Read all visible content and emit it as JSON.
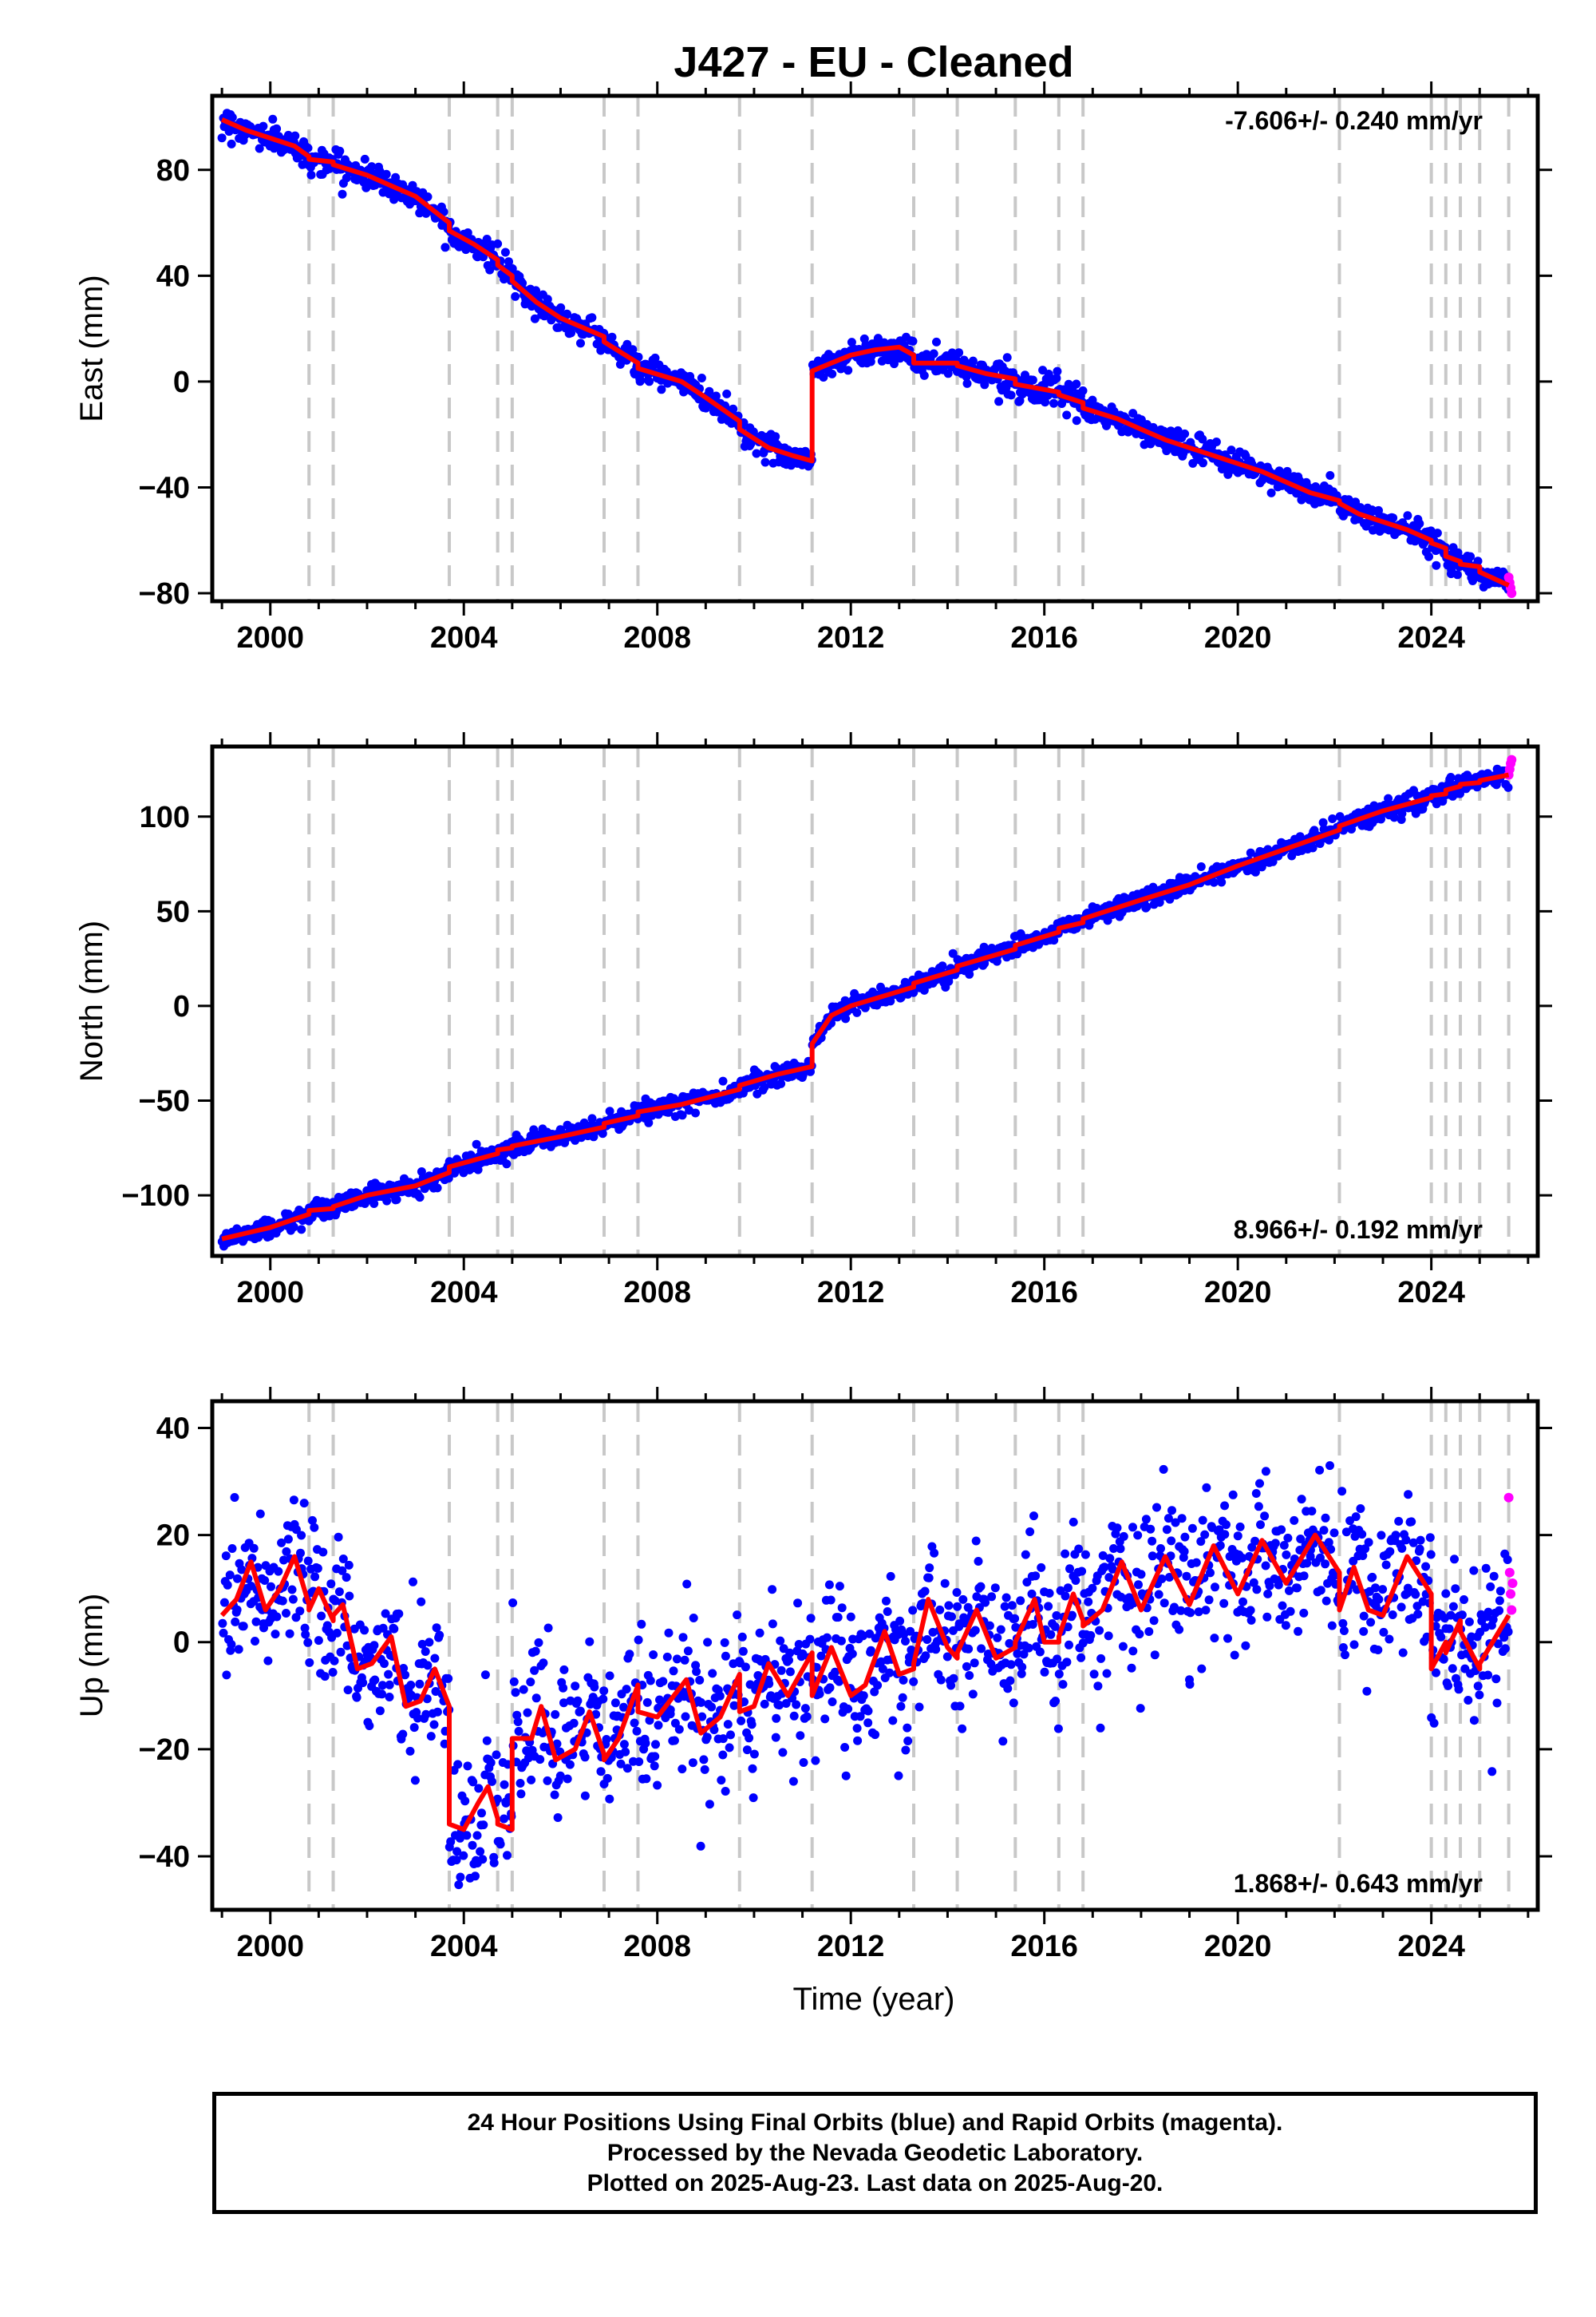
{
  "figure": {
    "title": "J427  - EU - Cleaned",
    "xlabel": "Time (year)",
    "footer": [
      "24 Hour Positions Using Final Orbits (blue) and Rapid Orbits (magenta).",
      "Processed by the Nevada Geodetic Laboratory.",
      "Plotted on 2025-Aug-23. Last data on 2025-Aug-20."
    ]
  },
  "colors": {
    "final_orbits": "#0000ff",
    "rapid_orbits": "#ff00ff",
    "model_fit": "#ff0000",
    "event_lines": "#c8c8c8",
    "axes": "#000000"
  },
  "chart_data": [
    {
      "type": "scatter",
      "name": "east",
      "title": "J427  - EU - Cleaned",
      "ylabel": "East (mm)",
      "xlabel": "",
      "rate_label": "-7.606+/- 0.240 mm/yr",
      "rate_label_position": "top-right",
      "xlim": [
        1998.8,
        2026.2
      ],
      "ylim": [
        -83,
        108
      ],
      "xticks": [
        2000,
        2004,
        2008,
        2012,
        2016,
        2020,
        2024
      ],
      "yticks": [
        -80,
        -40,
        0,
        40,
        80
      ],
      "event_lines": [
        2000.8,
        2001.3,
        2003.7,
        2004.7,
        2005.0,
        2006.9,
        2007.6,
        2009.7,
        2011.2,
        2013.3,
        2014.2,
        2015.4,
        2016.3,
        2016.8,
        2022.1,
        2024.0,
        2024.3,
        2024.6,
        2025.0,
        2025.6
      ],
      "fit_segments": [
        {
          "x": [
            1999.0,
            1999.5,
            2000.0,
            2000.5,
            2000.8
          ],
          "y": [
            99,
            95,
            92,
            89,
            85
          ]
        },
        {
          "x": [
            2000.8,
            2001.3
          ],
          "y": [
            84,
            83
          ]
        },
        {
          "x": [
            2001.3,
            2002.0,
            2002.5,
            2003.0,
            2003.7
          ],
          "y": [
            82,
            78,
            74,
            70,
            60
          ]
        },
        {
          "x": [
            2003.7,
            2004.2,
            2004.7
          ],
          "y": [
            57,
            52,
            46
          ]
        },
        {
          "x": [
            2004.7,
            2005.0
          ],
          "y": [
            44,
            40
          ]
        },
        {
          "x": [
            2005.0,
            2005.5,
            2006.0,
            2006.9
          ],
          "y": [
            38,
            30,
            24,
            17
          ]
        },
        {
          "x": [
            2006.9,
            2007.6
          ],
          "y": [
            15,
            7
          ]
        },
        {
          "x": [
            2007.6,
            2008.5,
            2009.0,
            2009.7
          ],
          "y": [
            5,
            0,
            -6,
            -15
          ]
        },
        {
          "x": [
            2009.7,
            2010.3,
            2010.8,
            2011.2
          ],
          "y": [
            -18,
            -25,
            -28,
            -30
          ]
        },
        {
          "x": [
            2011.2,
            2011.6,
            2012.0,
            2012.5,
            2013.0,
            2013.3
          ],
          "y": [
            4,
            7,
            10,
            12,
            13,
            10
          ]
        },
        {
          "x": [
            2013.3,
            2014.2
          ],
          "y": [
            7,
            7
          ]
        },
        {
          "x": [
            2014.2,
            2014.8,
            2015.4
          ],
          "y": [
            6,
            3,
            1
          ]
        },
        {
          "x": [
            2015.4,
            2016.3
          ],
          "y": [
            -1,
            -4
          ]
        },
        {
          "x": [
            2016.3,
            2016.8
          ],
          "y": [
            -5,
            -8
          ]
        },
        {
          "x": [
            2016.8,
            2017.5,
            2018.0,
            2018.5,
            2019.0,
            2019.5,
            2020.0,
            2020.5,
            2021.0,
            2021.5,
            2022.1
          ],
          "y": [
            -10,
            -14,
            -18,
            -22,
            -25,
            -28,
            -31,
            -34,
            -38,
            -42,
            -45
          ]
        },
        {
          "x": [
            2022.1,
            2022.5,
            2023.0,
            2023.5,
            2024.0
          ],
          "y": [
            -46,
            -50,
            -53,
            -56,
            -60
          ]
        },
        {
          "x": [
            2024.0,
            2024.3
          ],
          "y": [
            -61,
            -63
          ]
        },
        {
          "x": [
            2024.3,
            2024.6
          ],
          "y": [
            -66,
            -68
          ]
        },
        {
          "x": [
            2024.6,
            2025.0
          ],
          "y": [
            -69,
            -70
          ]
        },
        {
          "x": [
            2025.0,
            2025.6
          ],
          "y": [
            -72,
            -77
          ]
        }
      ],
      "rapid_points": {
        "x": [
          2025.6,
          2025.62,
          2025.64,
          2025.66
        ],
        "y": [
          -74,
          -76,
          -78,
          -80
        ]
      },
      "noise_sd": 2.5
    },
    {
      "type": "scatter",
      "name": "north",
      "ylabel": "North (mm)",
      "xlabel": "",
      "rate_label": "8.966+/- 0.192 mm/yr",
      "rate_label_position": "bottom-right",
      "xlim": [
        1998.8,
        2026.2
      ],
      "ylim": [
        -132,
        137
      ],
      "xticks": [
        2000,
        2004,
        2008,
        2012,
        2016,
        2020,
        2024
      ],
      "yticks": [
        -100,
        -50,
        0,
        50,
        100
      ],
      "event_lines": [
        2000.8,
        2001.3,
        2003.7,
        2004.7,
        2005.0,
        2006.9,
        2007.6,
        2009.7,
        2011.2,
        2013.3,
        2014.2,
        2015.4,
        2016.3,
        2016.8,
        2022.1,
        2024.0,
        2024.3,
        2024.6,
        2025.0,
        2025.6
      ],
      "fit_segments": [
        {
          "x": [
            1999.0,
            1999.5,
            2000.0,
            2000.8
          ],
          "y": [
            -123,
            -120,
            -117,
            -110
          ]
        },
        {
          "x": [
            2000.8,
            2001.3
          ],
          "y": [
            -108,
            -107
          ]
        },
        {
          "x": [
            2001.3,
            2002.0,
            2003.0,
            2003.7
          ],
          "y": [
            -106,
            -100,
            -95,
            -88
          ]
        },
        {
          "x": [
            2003.7,
            2004.7
          ],
          "y": [
            -85,
            -78
          ]
        },
        {
          "x": [
            2004.7,
            2005.0
          ],
          "y": [
            -76,
            -75
          ]
        },
        {
          "x": [
            2005.0,
            2006.0,
            2006.9
          ],
          "y": [
            -74,
            -69,
            -64
          ]
        },
        {
          "x": [
            2006.9,
            2007.6
          ],
          "y": [
            -62,
            -58
          ]
        },
        {
          "x": [
            2007.6,
            2008.5,
            2009.7
          ],
          "y": [
            -56,
            -52,
            -44
          ]
        },
        {
          "x": [
            2009.7,
            2010.5,
            2011.2
          ],
          "y": [
            -42,
            -36,
            -32
          ]
        },
        {
          "x": [
            2011.2,
            2011.6,
            2012.0,
            2013.3
          ],
          "y": [
            -20,
            -5,
            0,
            10
          ]
        },
        {
          "x": [
            2013.3,
            2014.2
          ],
          "y": [
            12,
            19
          ]
        },
        {
          "x": [
            2014.2,
            2015.4
          ],
          "y": [
            21,
            30
          ]
        },
        {
          "x": [
            2015.4,
            2016.3
          ],
          "y": [
            32,
            39
          ]
        },
        {
          "x": [
            2016.3,
            2016.8
          ],
          "y": [
            41,
            44
          ]
        },
        {
          "x": [
            2016.8,
            2018.0,
            2019.0,
            2020.0,
            2021.0,
            2022.1
          ],
          "y": [
            46,
            56,
            64,
            74,
            83,
            93
          ]
        },
        {
          "x": [
            2022.1,
            2023.0,
            2024.0
          ],
          "y": [
            95,
            103,
            110
          ]
        },
        {
          "x": [
            2024.0,
            2024.3
          ],
          "y": [
            111,
            112
          ]
        },
        {
          "x": [
            2024.3,
            2024.6
          ],
          "y": [
            114,
            116
          ]
        },
        {
          "x": [
            2024.6,
            2025.0
          ],
          "y": [
            117,
            118
          ]
        },
        {
          "x": [
            2025.0,
            2025.6
          ],
          "y": [
            119,
            122
          ]
        }
      ],
      "rapid_points": {
        "x": [
          2025.6,
          2025.62,
          2025.64,
          2025.66
        ],
        "y": [
          122,
          125,
          128,
          130
        ]
      },
      "noise_sd": 2.5
    },
    {
      "type": "scatter",
      "name": "up",
      "ylabel": "Up (mm)",
      "xlabel": "Time (year)",
      "rate_label": "1.868+/- 0.643 mm/yr",
      "rate_label_position": "bottom-right",
      "xlim": [
        1998.8,
        2026.2
      ],
      "ylim": [
        -50,
        45
      ],
      "xticks": [
        2000,
        2004,
        2008,
        2012,
        2016,
        2020,
        2024
      ],
      "yticks": [
        -40,
        -20,
        0,
        20,
        40
      ],
      "event_lines": [
        2000.8,
        2001.3,
        2003.7,
        2004.7,
        2005.0,
        2006.9,
        2007.6,
        2009.7,
        2011.2,
        2013.3,
        2014.2,
        2015.4,
        2016.3,
        2016.8,
        2022.1,
        2024.0,
        2024.3,
        2024.6,
        2025.0,
        2025.6
      ],
      "fit_segments": [
        {
          "x": [
            1999.0,
            1999.3,
            1999.6,
            1999.9,
            2000.2,
            2000.5,
            2000.8
          ],
          "y": [
            5,
            8,
            15,
            6,
            10,
            16,
            7
          ]
        },
        {
          "x": [
            2000.8,
            2001.0,
            2001.3
          ],
          "y": [
            6,
            10,
            4
          ]
        },
        {
          "x": [
            2001.3,
            2001.5,
            2001.8,
            2002.1,
            2002.5,
            2002.8,
            2003.1,
            2003.4,
            2003.7
          ],
          "y": [
            5,
            7,
            -5,
            -4,
            1,
            -12,
            -11,
            -5,
            -12
          ]
        },
        {
          "x": [
            2003.7,
            2004.0,
            2004.3,
            2004.5,
            2004.7
          ],
          "y": [
            -34,
            -35,
            -30,
            -27,
            -33
          ]
        },
        {
          "x": [
            2004.7,
            2005.0
          ],
          "y": [
            -34,
            -35
          ]
        },
        {
          "x": [
            2005.0,
            2005.4,
            2005.6,
            2005.9,
            2006.3,
            2006.6,
            2006.9
          ],
          "y": [
            -18,
            -18,
            -12,
            -22,
            -20,
            -13,
            -21
          ]
        },
        {
          "x": [
            2006.9,
            2007.2,
            2007.6
          ],
          "y": [
            -22,
            -18,
            -8
          ]
        },
        {
          "x": [
            2007.6,
            2008.0,
            2008.6,
            2008.9,
            2009.3,
            2009.7
          ],
          "y": [
            -13,
            -14,
            -7,
            -17,
            -14,
            -6
          ]
        },
        {
          "x": [
            2009.7,
            2010.0,
            2010.3,
            2010.7,
            2011.2
          ],
          "y": [
            -13,
            -12,
            -4,
            -10,
            -2
          ]
        },
        {
          "x": [
            2011.2,
            2011.6,
            2012.0,
            2012.3,
            2012.7,
            2013.0,
            2013.3
          ],
          "y": [
            -10,
            -1,
            -10,
            -8,
            2,
            -6,
            -5
          ]
        },
        {
          "x": [
            2013.3,
            2013.6,
            2014.0,
            2014.2
          ],
          "y": [
            -4,
            8,
            -1,
            -3
          ]
        },
        {
          "x": [
            2014.2,
            2014.6,
            2015.0,
            2015.4
          ],
          "y": [
            -2,
            6,
            -3,
            -1
          ]
        },
        {
          "x": [
            2015.4,
            2015.8,
            2016.0,
            2016.3
          ],
          "y": [
            0,
            8,
            0,
            0
          ]
        },
        {
          "x": [
            2016.3,
            2016.6,
            2016.8
          ],
          "y": [
            1,
            9,
            4
          ]
        },
        {
          "x": [
            2016.8,
            2017.2,
            2017.6,
            2018.0,
            2018.5,
            2019.0,
            2019.5,
            2020.0,
            2020.5,
            2021.0,
            2021.6,
            2022.1
          ],
          "y": [
            3,
            6,
            15,
            6,
            16,
            7,
            18,
            9,
            19,
            11,
            20,
            13
          ]
        },
        {
          "x": [
            2022.1,
            2022.4,
            2022.7,
            2023.0,
            2023.5,
            2024.0
          ],
          "y": [
            6,
            14,
            6,
            5,
            16,
            9
          ]
        },
        {
          "x": [
            2024.0,
            2024.3
          ],
          "y": [
            -5,
            0
          ]
        },
        {
          "x": [
            2024.3,
            2024.6
          ],
          "y": [
            -2,
            4
          ]
        },
        {
          "x": [
            2024.6,
            2025.0
          ],
          "y": [
            2,
            -5
          ]
        },
        {
          "x": [
            2025.0,
            2025.6
          ],
          "y": [
            -4,
            5
          ]
        }
      ],
      "rapid_points": {
        "x": [
          2025.6,
          2025.62,
          2025.64,
          2025.66,
          2025.68
        ],
        "y": [
          27,
          13,
          9,
          6,
          11
        ]
      },
      "noise_sd": 7
    }
  ]
}
